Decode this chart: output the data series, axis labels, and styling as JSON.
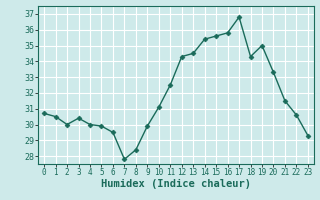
{
  "x": [
    0,
    1,
    2,
    3,
    4,
    5,
    6,
    7,
    8,
    9,
    10,
    11,
    12,
    13,
    14,
    15,
    16,
    17,
    18,
    19,
    20,
    21,
    22,
    23
  ],
  "y": [
    30.7,
    30.5,
    30.0,
    30.4,
    30.0,
    29.9,
    29.5,
    27.8,
    28.4,
    29.9,
    31.1,
    32.5,
    34.3,
    34.5,
    35.4,
    35.6,
    35.8,
    36.8,
    34.3,
    35.0,
    33.3,
    31.5,
    30.6,
    29.3
  ],
  "line_color": "#1a6b5a",
  "marker": "D",
  "marker_size": 2.5,
  "linewidth": 1.0,
  "xlabel": "Humidex (Indice chaleur)",
  "ylim": [
    27.5,
    37.5
  ],
  "yticks": [
    28,
    29,
    30,
    31,
    32,
    33,
    34,
    35,
    36,
    37
  ],
  "xticks": [
    0,
    1,
    2,
    3,
    4,
    5,
    6,
    7,
    8,
    9,
    10,
    11,
    12,
    13,
    14,
    15,
    16,
    17,
    18,
    19,
    20,
    21,
    22,
    23
  ],
  "bg_color": "#ceeaea",
  "grid_color": "#e8f8f8",
  "axis_label_fontsize": 7.5,
  "tick_fontsize": 6.5,
  "spine_color": "#1a6b5a"
}
